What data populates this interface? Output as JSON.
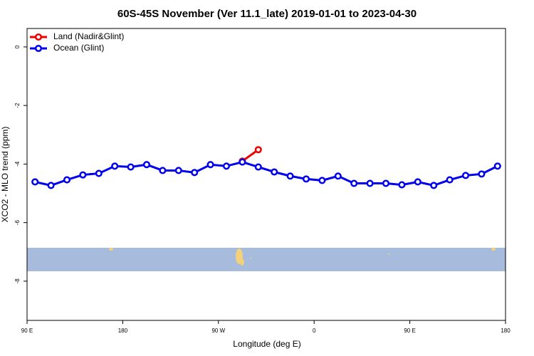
{
  "chart_data": {
    "type": "line",
    "title": "60S-45S November (Ver 11.1_late)   2019-01-01 to 2023-04-30",
    "xlabel": "Longitude (deg E)",
    "ylabel": "XCO2 - MLO trend (ppm)",
    "xlim": [
      90,
      540
    ],
    "xticks": [
      {
        "value": 90,
        "label": "90 E"
      },
      {
        "value": 180,
        "label": "180"
      },
      {
        "value": 270,
        "label": "90 W"
      },
      {
        "value": 360,
        "label": "0"
      },
      {
        "value": 450,
        "label": "90 E"
      },
      {
        "value": 540,
        "label": "180"
      }
    ],
    "ylim": [
      -9.34,
      0.63
    ],
    "yticks": [
      0,
      -2,
      -4,
      -6,
      -8
    ],
    "legend": "top-left",
    "series": [
      {
        "name": "Land (Nadir&Glint)",
        "color": "#ee0000",
        "x": [
          292.5,
          307.5
        ],
        "values": [
          -3.9,
          -3.51
        ]
      },
      {
        "name": "Ocean (Glint)",
        "color": "#0000ee",
        "x": [
          97.5,
          112.5,
          127.5,
          142.5,
          157.5,
          172.5,
          187.5,
          202.5,
          217.5,
          232.5,
          247.5,
          262.5,
          277.5,
          292.5,
          307.5,
          322.5,
          337.5,
          352.5,
          367.5,
          382.5,
          397.5,
          412.5,
          427.5,
          442.5,
          457.5,
          472.5,
          487.5,
          502.5,
          517.5,
          532.5
        ],
        "values": [
          -4.61,
          -4.73,
          -4.54,
          -4.37,
          -4.32,
          -4.07,
          -4.1,
          -4.02,
          -4.22,
          -4.22,
          -4.29,
          -4.02,
          -4.07,
          -3.93,
          -4.1,
          -4.27,
          -4.41,
          -4.51,
          -4.56,
          -4.41,
          -4.66,
          -4.66,
          -4.66,
          -4.71,
          -4.61,
          -4.73,
          -4.54,
          -4.39,
          -4.34,
          -4.07
        ]
      }
    ]
  }
}
